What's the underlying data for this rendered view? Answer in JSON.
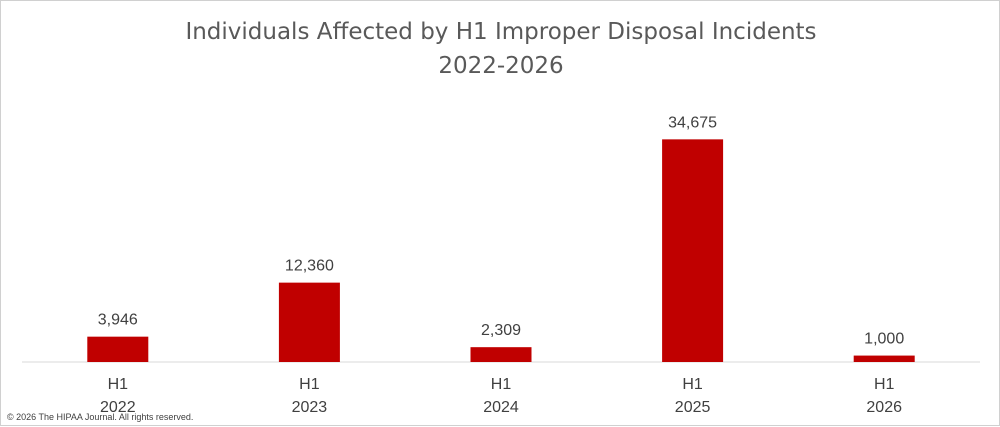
{
  "chart_data": {
    "type": "bar",
    "title": [
      "Individuals Affected by H1 Improper Disposal Incidents",
      "2022-2026"
    ],
    "categories": [
      [
        "H1",
        "2022"
      ],
      [
        "H1",
        "2023"
      ],
      [
        "H1",
        "2024"
      ],
      [
        "H1",
        "2025"
      ],
      [
        "H1",
        "2026"
      ]
    ],
    "values": [
      3946,
      12360,
      2309,
      34675,
      1000
    ],
    "data_labels": [
      "3,946",
      "12,360",
      "2,309",
      "34,675",
      "1,000"
    ],
    "bar_color": "#c00000",
    "grid": false,
    "ylim": [
      0,
      38000
    ]
  },
  "footer": {
    "copyright": "© 2026 The HIPAA Journal. All rights reserved."
  }
}
